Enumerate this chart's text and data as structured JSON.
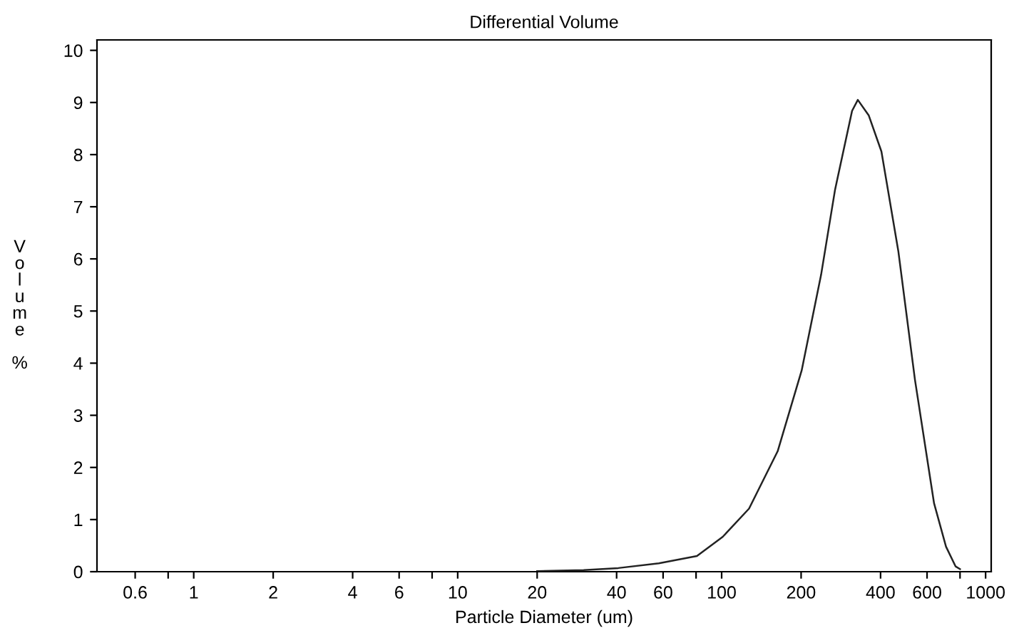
{
  "chart_data": {
    "type": "line",
    "title": "Differential Volume",
    "xlabel": "Particle Diameter (um)",
    "ylabel": "Volume %",
    "log": "x",
    "grid": false,
    "marker": "none",
    "line_style": "solid",
    "xlim": [
      0.43,
      1050
    ],
    "ylim": [
      0,
      10.2
    ],
    "xticks": [
      0.6,
      {
        "value": 0.8,
        "label": null
      },
      1,
      2,
      4,
      6,
      {
        "value": 8,
        "label": null
      },
      10,
      20,
      40,
      60,
      {
        "value": 80,
        "label": null
      },
      100,
      200,
      400,
      600,
      {
        "value": 800,
        "label": null
      },
      1000
    ],
    "yticks": [
      0,
      1,
      2,
      3,
      4,
      5,
      6,
      7,
      8,
      9,
      10
    ],
    "series": [
      {
        "color": "#222222",
        "x": [
          20,
          30,
          40.6,
          57.8,
          80.6,
          101,
          127,
          163,
          201,
          238,
          269,
          312,
          328,
          361,
          403,
          467,
          540,
          638,
          708,
          770,
          800
        ],
        "values": [
          0.01,
          0.03,
          0.07,
          0.16,
          0.3,
          0.67,
          1.21,
          2.31,
          3.86,
          5.69,
          7.33,
          8.84,
          9.05,
          8.75,
          8.06,
          6.15,
          3.68,
          1.31,
          0.48,
          0.1,
          0.05
        ]
      }
    ]
  }
}
